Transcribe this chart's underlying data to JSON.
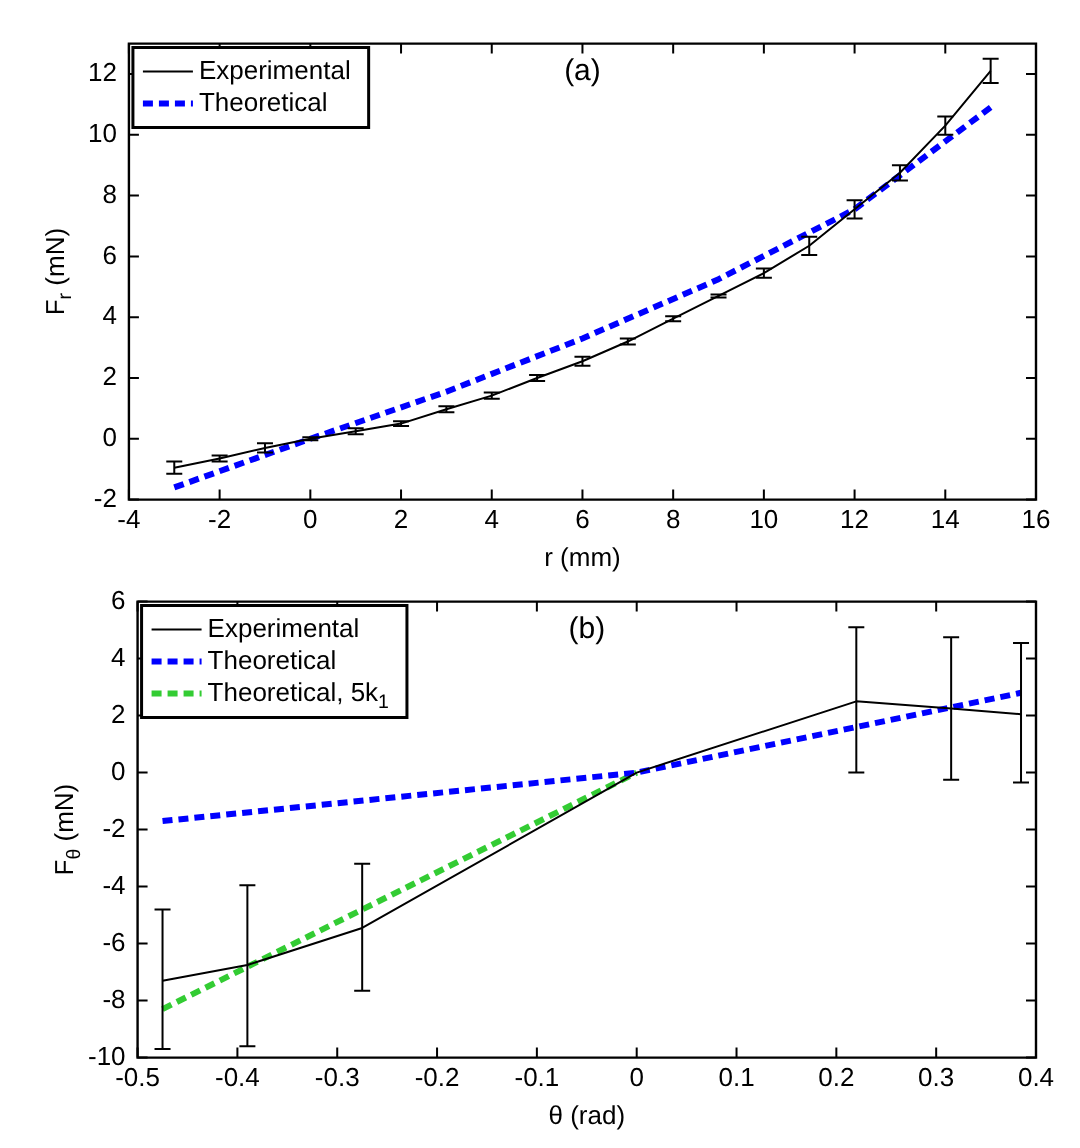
{
  "chart_data": [
    {
      "type": "line",
      "title": "(a)",
      "xlabel": "r (mm)",
      "ylabel": "F$_{r}$ (mN)",
      "xlim": [
        -4,
        16
      ],
      "xticks": [
        -4,
        -2,
        0,
        2,
        4,
        6,
        8,
        10,
        12,
        14,
        16
      ],
      "ylim": [
        -2,
        13
      ],
      "yticks": [
        -2,
        0,
        2,
        4,
        6,
        8,
        10,
        12
      ],
      "grid": false,
      "legend": "top left",
      "marker": "none",
      "series": [
        {
          "name": "Experimental",
          "color": "#000000",
          "line_style": "solid",
          "x": [
            -3,
            -2,
            -1,
            0,
            1,
            2,
            3,
            4,
            5,
            6,
            7,
            8,
            9,
            10,
            11,
            12,
            13,
            14,
            15
          ],
          "values": [
            -0.95,
            -0.65,
            -0.3,
            0,
            0.25,
            0.5,
            0.97,
            1.42,
            2.0,
            2.55,
            3.2,
            3.95,
            4.7,
            5.45,
            6.35,
            7.55,
            8.75,
            10.3,
            12.1
          ],
          "errors": [
            0.2,
            0.1,
            0.15,
            0.05,
            0.1,
            0.08,
            0.1,
            0.1,
            0.1,
            0.15,
            0.1,
            0.08,
            0.05,
            0.15,
            0.3,
            0.3,
            0.25,
            0.3,
            0.4
          ]
        },
        {
          "name": "Theoretical",
          "color": "#0000ff",
          "line_style": "dashed",
          "x": [
            -3,
            0,
            3,
            6,
            9,
            12,
            15
          ],
          "values": [
            -1.6,
            0,
            1.55,
            3.3,
            5.25,
            7.55,
            10.9
          ]
        }
      ]
    },
    {
      "type": "line",
      "title": "(b)",
      "xlabel": "θ (rad)",
      "ylabel": "F$_{θ}$ (mN)",
      "xlim": [
        -0.5,
        0.4
      ],
      "xticks": [
        -0.5,
        -0.4,
        -0.3,
        -0.2,
        -0.1,
        0,
        0.1,
        0.2,
        0.3,
        0.4
      ],
      "ylim": [
        -10,
        6
      ],
      "yticks": [
        -10,
        -8,
        -6,
        -4,
        -2,
        0,
        2,
        4,
        6
      ],
      "grid": false,
      "legend": "top left",
      "marker": "none",
      "series": [
        {
          "name": "Experimental",
          "color": "#000000",
          "line_style": "solid",
          "x": [
            -0.475,
            -0.39,
            -0.275,
            0,
            0.22,
            0.315,
            0.385
          ],
          "values": [
            -7.3,
            -6.75,
            -5.45,
            0,
            2.5,
            2.25,
            2.05
          ],
          "errors": [
            [
              -9.7,
              -4.8
            ],
            [
              -9.6,
              -3.95
            ],
            [
              -7.65,
              -3.2
            ],
            null,
            [
              0,
              5.1
            ],
            [
              -0.25,
              4.75
            ],
            [
              -0.35,
              4.55
            ]
          ]
        },
        {
          "name": "Theoretical",
          "color": "#0000ff",
          "line_style": "dashed",
          "x": [
            -0.475,
            0,
            0.385
          ],
          "values": [
            -1.7,
            0,
            2.8
          ]
        },
        {
          "name": "Theoretical, 5k$_{1}$",
          "color": "#33cc33",
          "line_style": "dashed",
          "x": [
            -0.475,
            0
          ],
          "values": [
            -8.3,
            0
          ]
        }
      ]
    }
  ]
}
